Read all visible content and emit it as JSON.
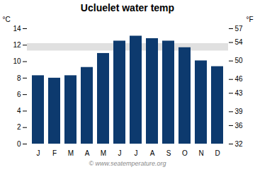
{
  "chart_data": {
    "type": "bar",
    "title": "Ucluelet water temp",
    "categories": [
      "J",
      "F",
      "M",
      "A",
      "M",
      "J",
      "J",
      "A",
      "S",
      "O",
      "N",
      "D"
    ],
    "values": [
      8.3,
      8.0,
      8.3,
      9.3,
      11.0,
      12.5,
      13.1,
      12.8,
      12.5,
      11.7,
      10.1,
      9.4
    ],
    "color": "#0d3a6e",
    "ylim": [
      0,
      14
    ],
    "yticks": [
      0,
      2,
      4,
      6,
      8,
      10,
      12,
      14
    ],
    "ylabel": "°C",
    "y2lim": [
      32,
      57
    ],
    "y2ticks": [
      32,
      36,
      39,
      43,
      46,
      50,
      54,
      57
    ],
    "y2label": "°F",
    "shaded_band": {
      "ymin": 11.3,
      "ymax": 12.2,
      "color": "#e0e0e0"
    },
    "caption": "© www.seatemperature.org",
    "grid": false
  }
}
